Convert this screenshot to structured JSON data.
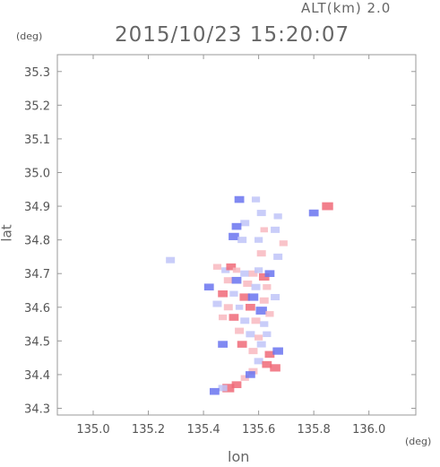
{
  "header": {
    "altitude_label": "ALT(km) 2.0",
    "timestamp": "2015/10/23 15:20:07"
  },
  "axes": {
    "y_unit": "(deg)",
    "x_unit": "(deg)",
    "y_title": "lat",
    "x_title": "lon"
  },
  "chart_data": {
    "type": "heatmap",
    "title": "2015/10/23 15:20:07",
    "subtitle": "ALT(km) 2.0",
    "xlabel": "lon",
    "ylabel": "lat",
    "x_unit": "(deg)",
    "y_unit": "(deg)",
    "xlim": [
      134.87,
      136.17
    ],
    "ylim": [
      34.28,
      35.35
    ],
    "x_ticks": [
      135.0,
      135.2,
      135.4,
      135.6,
      135.8,
      136.0
    ],
    "x_tick_labels": [
      "135.0",
      "135.2",
      "135.4",
      "135.6",
      "135.8",
      "136.0"
    ],
    "y_ticks": [
      34.3,
      34.4,
      34.5,
      34.6,
      34.7,
      34.8,
      34.9,
      35.0,
      35.1,
      35.2,
      35.3
    ],
    "y_tick_labels": [
      "34.3",
      "34.4",
      "34.5",
      "34.6",
      "34.7",
      "34.8",
      "34.9",
      "35.0",
      "35.1",
      "35.2",
      "35.3"
    ],
    "colors": {
      "positive": "#f06a78",
      "positive_light": "#f8b8c0",
      "negative": "#6a74f0",
      "negative_light": "#c0c4f8"
    },
    "cells": [
      {
        "lon": 135.53,
        "lat": 34.92,
        "v": -0.6
      },
      {
        "lon": 135.59,
        "lat": 34.92,
        "v": -0.4
      },
      {
        "lon": 135.61,
        "lat": 34.88,
        "v": -0.5
      },
      {
        "lon": 135.85,
        "lat": 34.9,
        "v": 0.8
      },
      {
        "lon": 135.8,
        "lat": 34.88,
        "v": -0.6
      },
      {
        "lon": 135.67,
        "lat": 34.87,
        "v": -0.4
      },
      {
        "lon": 135.55,
        "lat": 34.85,
        "v": -0.5
      },
      {
        "lon": 135.52,
        "lat": 34.84,
        "v": -0.6
      },
      {
        "lon": 135.51,
        "lat": 34.81,
        "v": -0.7
      },
      {
        "lon": 135.54,
        "lat": 34.8,
        "v": -0.5
      },
      {
        "lon": 135.62,
        "lat": 34.83,
        "v": 0.3
      },
      {
        "lon": 135.66,
        "lat": 34.83,
        "v": -0.5
      },
      {
        "lon": 135.6,
        "lat": 34.8,
        "v": -0.4
      },
      {
        "lon": 135.69,
        "lat": 34.79,
        "v": 0.4
      },
      {
        "lon": 135.61,
        "lat": 34.76,
        "v": 0.5
      },
      {
        "lon": 135.67,
        "lat": 34.75,
        "v": -0.5
      },
      {
        "lon": 135.28,
        "lat": 34.74,
        "v": -0.5
      },
      {
        "lon": 135.45,
        "lat": 34.72,
        "v": 0.4
      },
      {
        "lon": 135.48,
        "lat": 34.71,
        "v": -0.4
      },
      {
        "lon": 135.5,
        "lat": 34.72,
        "v": 0.6
      },
      {
        "lon": 135.52,
        "lat": 34.71,
        "v": 0.3
      },
      {
        "lon": 135.55,
        "lat": 34.7,
        "v": -0.5
      },
      {
        "lon": 135.58,
        "lat": 34.7,
        "v": 0.5
      },
      {
        "lon": 135.6,
        "lat": 34.71,
        "v": -0.4
      },
      {
        "lon": 135.62,
        "lat": 34.69,
        "v": 0.7
      },
      {
        "lon": 135.64,
        "lat": 34.7,
        "v": -0.6
      },
      {
        "lon": 135.49,
        "lat": 34.68,
        "v": 0.5
      },
      {
        "lon": 135.52,
        "lat": 34.68,
        "v": -0.6
      },
      {
        "lon": 135.56,
        "lat": 34.67,
        "v": 0.5
      },
      {
        "lon": 135.59,
        "lat": 34.66,
        "v": -0.5
      },
      {
        "lon": 135.63,
        "lat": 34.66,
        "v": 0.4
      },
      {
        "lon": 135.42,
        "lat": 34.66,
        "v": -0.6
      },
      {
        "lon": 135.47,
        "lat": 34.64,
        "v": 0.6
      },
      {
        "lon": 135.51,
        "lat": 34.64,
        "v": -0.4
      },
      {
        "lon": 135.55,
        "lat": 34.63,
        "v": 0.7
      },
      {
        "lon": 135.58,
        "lat": 34.63,
        "v": -0.7
      },
      {
        "lon": 135.62,
        "lat": 34.62,
        "v": 0.5
      },
      {
        "lon": 135.66,
        "lat": 34.63,
        "v": -0.5
      },
      {
        "lon": 135.45,
        "lat": 34.61,
        "v": -0.5
      },
      {
        "lon": 135.49,
        "lat": 34.6,
        "v": 0.5
      },
      {
        "lon": 135.53,
        "lat": 34.6,
        "v": -0.3
      },
      {
        "lon": 135.57,
        "lat": 34.6,
        "v": 0.6
      },
      {
        "lon": 135.61,
        "lat": 34.59,
        "v": -0.8
      },
      {
        "lon": 135.64,
        "lat": 34.58,
        "v": 0.4
      },
      {
        "lon": 135.47,
        "lat": 34.57,
        "v": 0.4
      },
      {
        "lon": 135.51,
        "lat": 34.57,
        "v": 0.6
      },
      {
        "lon": 135.55,
        "lat": 34.56,
        "v": -0.5
      },
      {
        "lon": 135.59,
        "lat": 34.56,
        "v": 0.5
      },
      {
        "lon": 135.62,
        "lat": 34.55,
        "v": -0.4
      },
      {
        "lon": 135.53,
        "lat": 34.53,
        "v": 0.5
      },
      {
        "lon": 135.57,
        "lat": 34.52,
        "v": -0.5
      },
      {
        "lon": 135.6,
        "lat": 34.51,
        "v": 0.4
      },
      {
        "lon": 135.63,
        "lat": 34.52,
        "v": -0.4
      },
      {
        "lon": 135.47,
        "lat": 34.49,
        "v": -0.6
      },
      {
        "lon": 135.54,
        "lat": 34.49,
        "v": 0.6
      },
      {
        "lon": 135.61,
        "lat": 34.49,
        "v": -0.5
      },
      {
        "lon": 135.58,
        "lat": 34.47,
        "v": 0.5
      },
      {
        "lon": 135.64,
        "lat": 34.46,
        "v": 0.6
      },
      {
        "lon": 135.67,
        "lat": 34.47,
        "v": -0.7
      },
      {
        "lon": 135.6,
        "lat": 34.44,
        "v": -0.5
      },
      {
        "lon": 135.63,
        "lat": 34.43,
        "v": 0.6
      },
      {
        "lon": 135.66,
        "lat": 34.42,
        "v": 0.7
      },
      {
        "lon": 135.58,
        "lat": 34.41,
        "v": 0.5
      },
      {
        "lon": 135.55,
        "lat": 34.39,
        "v": 0.4
      },
      {
        "lon": 135.57,
        "lat": 34.4,
        "v": -0.6
      },
      {
        "lon": 135.52,
        "lat": 34.37,
        "v": 0.6
      },
      {
        "lon": 135.49,
        "lat": 34.36,
        "v": 0.9
      },
      {
        "lon": 135.47,
        "lat": 34.36,
        "v": -0.5
      },
      {
        "lon": 135.44,
        "lat": 34.35,
        "v": -0.6
      }
    ]
  }
}
